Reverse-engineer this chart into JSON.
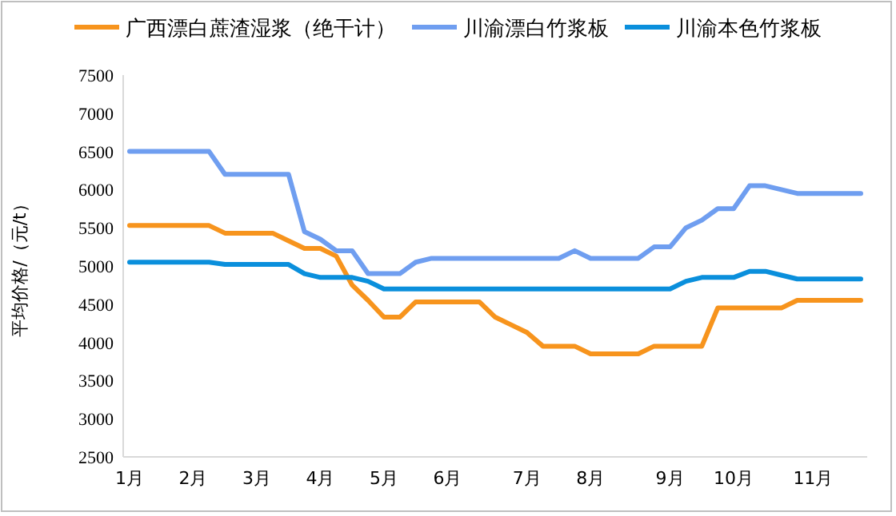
{
  "chart_data": {
    "type": "line",
    "ylabel": "平均价格/（元/t）",
    "legend": "top",
    "categories": [
      "1月",
      null,
      null,
      null,
      "2月",
      null,
      null,
      null,
      "3月",
      null,
      null,
      null,
      "4月",
      null,
      null,
      null,
      "5月",
      null,
      null,
      null,
      "6月",
      null,
      null,
      null,
      null,
      "7月",
      null,
      null,
      null,
      "8月",
      null,
      null,
      null,
      null,
      "9月",
      null,
      null,
      null,
      "10月",
      null,
      null,
      null,
      null,
      "11月",
      null,
      null,
      null
    ],
    "ylim": [
      2500,
      7500
    ],
    "yticks": [
      2500,
      3000,
      3500,
      4000,
      4500,
      5000,
      5500,
      6000,
      6500,
      7000,
      7500
    ],
    "series": [
      {
        "name": "广西漂白蔗渣湿浆（绝干计）",
        "color": "#f7941d",
        "values": [
          5530,
          5530,
          5530,
          5530,
          5530,
          5530,
          5430,
          5430,
          5430,
          5430,
          5330,
          5230,
          5230,
          5130,
          4750,
          4550,
          4330,
          4330,
          4530,
          4530,
          4530,
          4530,
          4530,
          4330,
          4230,
          4130,
          3950,
          3950,
          3950,
          3850,
          3850,
          3850,
          3850,
          3950,
          3950,
          3950,
          3950,
          4450,
          4450,
          4450,
          4450,
          4450,
          4550,
          4550,
          4550,
          4550,
          4550
        ]
      },
      {
        "name": "川渝漂白竹浆板",
        "color": "#6f9ef0",
        "values": [
          6500,
          6500,
          6500,
          6500,
          6500,
          6500,
          6200,
          6200,
          6200,
          6200,
          6200,
          5450,
          5350,
          5200,
          5200,
          4900,
          4900,
          4900,
          5050,
          5100,
          5100,
          5100,
          5100,
          5100,
          5100,
          5100,
          5100,
          5100,
          5200,
          5100,
          5100,
          5100,
          5100,
          5250,
          5250,
          5500,
          5600,
          5750,
          5750,
          6050,
          6050,
          6000,
          5950,
          5950,
          5950,
          5950,
          5950
        ]
      },
      {
        "name": "川渝本色竹浆板",
        "color": "#0a8fdc",
        "values": [
          5050,
          5050,
          5050,
          5050,
          5050,
          5050,
          5020,
          5020,
          5020,
          5020,
          5020,
          4900,
          4850,
          4850,
          4850,
          4800,
          4700,
          4700,
          4700,
          4700,
          4700,
          4700,
          4700,
          4700,
          4700,
          4700,
          4700,
          4700,
          4700,
          4700,
          4700,
          4700,
          4700,
          4700,
          4700,
          4800,
          4850,
          4850,
          4850,
          4930,
          4930,
          4880,
          4830,
          4830,
          4830,
          4830,
          4830
        ]
      }
    ]
  }
}
